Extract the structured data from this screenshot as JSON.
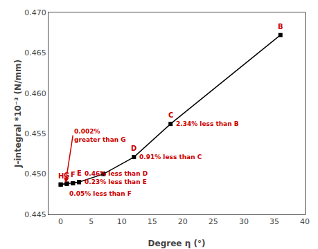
{
  "chart_data": {
    "type": "line",
    "x_label": "Degree η (°)",
    "y_label": "J-integral *10⁻³ (N/mm)",
    "series": [
      {
        "x": [
          0,
          1,
          2,
          3
        ],
        "values": [
          0.4487,
          0.4488,
          0.44885,
          0.449
        ],
        "color": "black",
        "line_style": "dashed",
        "marker": "square"
      },
      {
        "x": [
          0,
          1,
          2,
          3,
          7,
          12,
          18,
          36
        ],
        "values": [
          0.4487,
          0.4488,
          0.44885,
          0.449,
          0.45,
          0.4521,
          0.4562,
          0.4672
        ],
        "color": "black",
        "line_style": "solid",
        "marker": "square"
      }
    ],
    "point_labels": [
      {
        "text": "H",
        "x": 0,
        "y": 0.4487,
        "color": "#cc0000"
      },
      {
        "text": "G",
        "x": 1,
        "y": 0.4488,
        "color": "#cc0000"
      },
      {
        "text": "F",
        "x": 2,
        "y": 0.44885,
        "color": "#cc0000"
      },
      {
        "text": "E",
        "x": 3,
        "y": 0.449,
        "color": "#cc0000"
      },
      {
        "text": "D",
        "x": 12,
        "y": 0.4521,
        "color": "#cc0000"
      },
      {
        "text": "C",
        "x": 18,
        "y": 0.4562,
        "color": "#cc0000"
      },
      {
        "text": "B",
        "x": 36,
        "y": 0.4672,
        "color": "#cc0000"
      }
    ],
    "annotations": [
      {
        "text": "2.34% less than B",
        "x": 18.4,
        "y": 0.4562,
        "color": "#cc0000"
      },
      {
        "text": "0.91% less than C",
        "x": 12.4,
        "y": 0.4521,
        "color": "#cc0000"
      },
      {
        "text": "0.46% less than D",
        "x": 3.4,
        "y": 0.45005,
        "color": "#cc0000"
      },
      {
        "text": "0.23% less than E",
        "x": 3.4,
        "y": 0.449,
        "color": "#cc0000"
      },
      {
        "text": "0.05% less than F",
        "x": 1.0,
        "y": 0.44755,
        "color": "#cc0000"
      },
      {
        "text": "0.002%\ngreater than G",
        "x": 2.0,
        "y": 0.4548,
        "arrow_x": 0.8,
        "arrow_y": 0.4489,
        "color": "#cc0000"
      }
    ],
    "xlim": [
      -2,
      40
    ],
    "ylim": [
      0.445,
      0.47
    ],
    "xticks": [
      0,
      5,
      10,
      15,
      20,
      25,
      30,
      35,
      40
    ],
    "yticks": [
      0.445,
      {
        "value": 0.45,
        "label": "0.450"
      },
      0.455,
      {
        "value": 0.46,
        "label": "0.460"
      },
      0.465,
      {
        "value": 0.47,
        "label": "0.470"
      }
    ],
    "grid": false
  }
}
